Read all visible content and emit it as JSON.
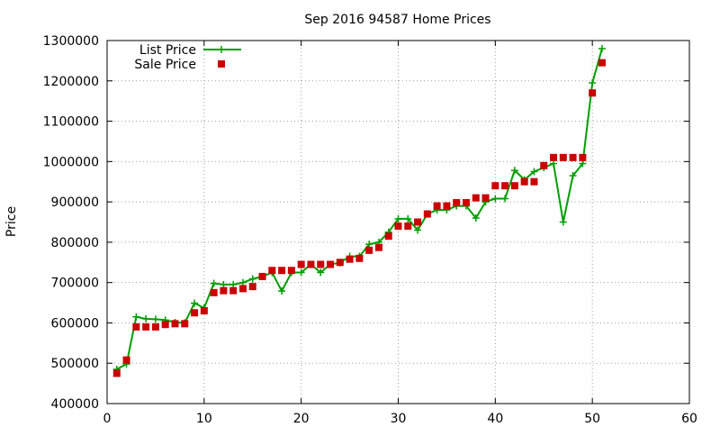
{
  "chart_data": {
    "type": "line",
    "title": "Sep 2016 94587 Home Prices",
    "xlabel": "",
    "ylabel": "Price",
    "xlim": [
      0,
      60
    ],
    "ylim": [
      400000,
      1300000
    ],
    "xticks": [
      "0",
      "10",
      "20",
      "30",
      "40",
      "50",
      "60"
    ],
    "yticks": [
      "400000",
      "500000",
      "600000",
      "700000",
      "800000",
      "900000",
      "1000000",
      "1100000",
      "1200000",
      "1300000"
    ],
    "grid": true,
    "legend_position": "top-left",
    "series": [
      {
        "name": "List Price",
        "style": "line-with-plus-markers",
        "color": "#009e00",
        "points": [
          [
            1,
            485000
          ],
          [
            2,
            498000
          ],
          [
            3,
            615000
          ],
          [
            4,
            610000
          ],
          [
            5,
            609000
          ],
          [
            6,
            607000
          ],
          [
            7,
            601000
          ],
          [
            8,
            600000
          ],
          [
            9,
            649000
          ],
          [
            10,
            637000
          ],
          [
            11,
            698000
          ],
          [
            12,
            695000
          ],
          [
            13,
            695000
          ],
          [
            14,
            700000
          ],
          [
            15,
            709000
          ],
          [
            16,
            715000
          ],
          [
            17,
            725000
          ],
          [
            18,
            679000
          ],
          [
            19,
            725000
          ],
          [
            20,
            725000
          ],
          [
            21,
            745000
          ],
          [
            22,
            725000
          ],
          [
            23,
            745000
          ],
          [
            24,
            749000
          ],
          [
            25,
            765000
          ],
          [
            26,
            765000
          ],
          [
            27,
            795000
          ],
          [
            28,
            800000
          ],
          [
            29,
            825000
          ],
          [
            30,
            858000
          ],
          [
            31,
            858000
          ],
          [
            32,
            830000
          ],
          [
            33,
            870000
          ],
          [
            34,
            880000
          ],
          [
            35,
            880000
          ],
          [
            36,
            890000
          ],
          [
            37,
            890000
          ],
          [
            38,
            860000
          ],
          [
            39,
            900000
          ],
          [
            40,
            908000
          ],
          [
            41,
            908000
          ],
          [
            42,
            978000
          ],
          [
            43,
            955000
          ],
          [
            44,
            975000
          ],
          [
            45,
            985000
          ],
          [
            46,
            995000
          ],
          [
            47,
            850000
          ],
          [
            48,
            965000
          ],
          [
            49,
            995000
          ],
          [
            50,
            1195000
          ],
          [
            51,
            1280000
          ]
        ]
      },
      {
        "name": "Sale Price",
        "style": "square-markers",
        "color": "#cc0000",
        "points": [
          [
            1,
            475000
          ],
          [
            2,
            508000
          ],
          [
            3,
            590000
          ],
          [
            4,
            590000
          ],
          [
            5,
            590000
          ],
          [
            6,
            596000
          ],
          [
            7,
            598000
          ],
          [
            8,
            598000
          ],
          [
            9,
            625000
          ],
          [
            10,
            630000
          ],
          [
            11,
            675000
          ],
          [
            12,
            680000
          ],
          [
            13,
            680000
          ],
          [
            14,
            685000
          ],
          [
            15,
            690000
          ],
          [
            16,
            715000
          ],
          [
            17,
            730000
          ],
          [
            18,
            730000
          ],
          [
            19,
            730000
          ],
          [
            20,
            745000
          ],
          [
            21,
            745000
          ],
          [
            22,
            745000
          ],
          [
            23,
            745000
          ],
          [
            24,
            750000
          ],
          [
            25,
            758000
          ],
          [
            26,
            760000
          ],
          [
            27,
            780000
          ],
          [
            28,
            787000
          ],
          [
            29,
            815000
          ],
          [
            30,
            840000
          ],
          [
            31,
            840000
          ],
          [
            32,
            850000
          ],
          [
            33,
            870000
          ],
          [
            34,
            890000
          ],
          [
            35,
            890000
          ],
          [
            36,
            898000
          ],
          [
            37,
            898000
          ],
          [
            38,
            910000
          ],
          [
            39,
            910000
          ],
          [
            40,
            940000
          ],
          [
            41,
            940000
          ],
          [
            42,
            940000
          ],
          [
            43,
            950000
          ],
          [
            44,
            950000
          ],
          [
            45,
            990000
          ],
          [
            46,
            1010000
          ],
          [
            47,
            1010000
          ],
          [
            48,
            1010000
          ],
          [
            49,
            1010000
          ],
          [
            50,
            1170000
          ],
          [
            51,
            1245000
          ]
        ]
      }
    ]
  }
}
